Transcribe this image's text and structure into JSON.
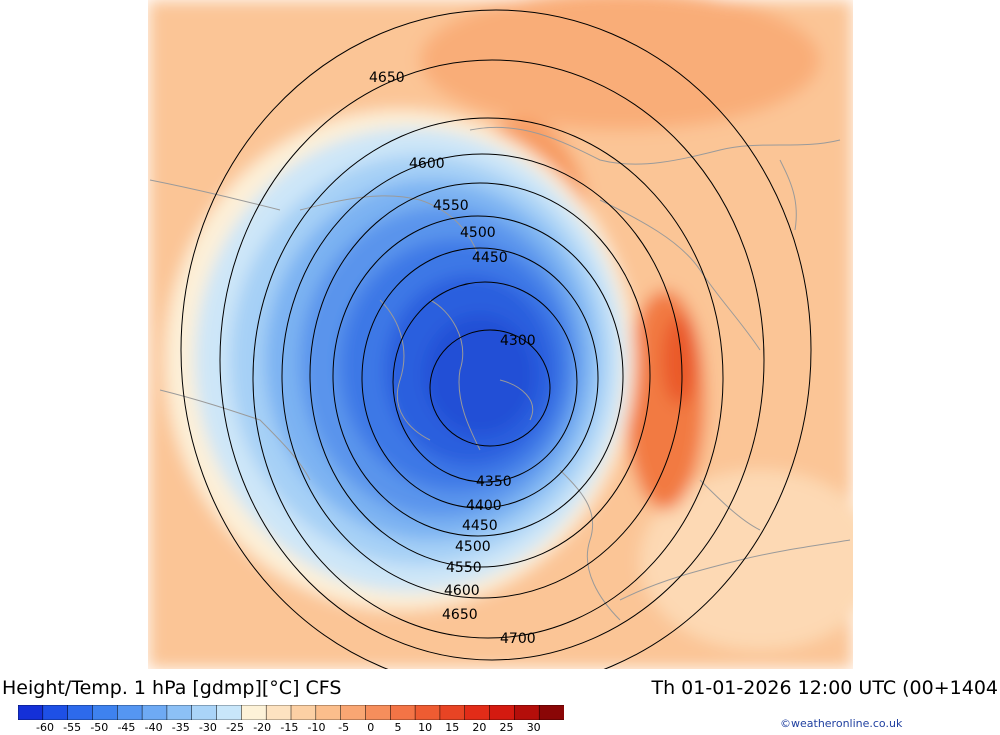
{
  "header": {
    "title_left": "Height/Temp. 1 hPa [gdmp][°C] CFS",
    "title_right": "Th 01-01-2026 12:00 UTC (00+1404"
  },
  "colorbar": {
    "colors": [
      "#1430d8",
      "#1e50e6",
      "#2d6aec",
      "#3e82ef",
      "#5596f2",
      "#6eaaf4",
      "#8cc0f6",
      "#aad4f8",
      "#c8e6fa",
      "#fdf2d8",
      "#fde2c0",
      "#fcd0a4",
      "#fbbe8c",
      "#f9a673",
      "#f68e5c",
      "#f37446",
      "#ee5c32",
      "#e84424",
      "#e22c18",
      "#d41a10",
      "#b40e0a",
      "#8a0606"
    ],
    "tick_labels": [
      "-60",
      "-55",
      "-50",
      "-45",
      "-40",
      "-35",
      "-30",
      "-25",
      "-20",
      "-15",
      "-10",
      "-5",
      "0",
      "5",
      "10",
      "15",
      "20",
      "25",
      "30"
    ]
  },
  "contour_labels": [
    {
      "text": "4650"
    },
    {
      "text": "4600"
    },
    {
      "text": "4550"
    },
    {
      "text": "4500"
    },
    {
      "text": "4450"
    },
    {
      "text": "4300"
    },
    {
      "text": "4350"
    },
    {
      "text": "4400"
    },
    {
      "text": "4450"
    },
    {
      "text": "4500"
    },
    {
      "text": "4550"
    },
    {
      "text": "4600"
    },
    {
      "text": "4650"
    },
    {
      "text": "4700"
    }
  ],
  "credit": "©weatheronline.co.uk"
}
